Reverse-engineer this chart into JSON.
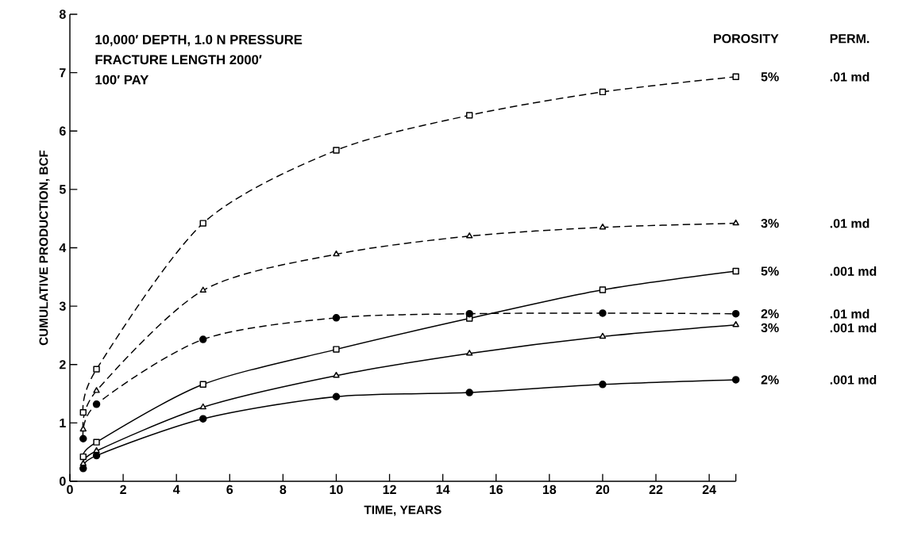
{
  "chart_data": {
    "type": "line",
    "xlabel": "TIME, YEARS",
    "ylabel": "CUMULATIVE PRODUCTION, BCF",
    "x": [
      0.5,
      1,
      5,
      10,
      15,
      20,
      25
    ],
    "series": [
      {
        "name": "5%",
        "color": "#000000",
        "marker": "square",
        "line_style": "dashed",
        "values": [
          1.18,
          1.92,
          4.42,
          5.67,
          6.27,
          6.67,
          6.93
        ]
      },
      {
        "name": "3%",
        "color": "#000000",
        "marker": "triangle",
        "line_style": "dashed",
        "values": [
          0.89,
          1.55,
          3.27,
          3.89,
          4.2,
          4.35,
          4.42
        ]
      },
      {
        "name": "5%",
        "color": "#000000",
        "marker": "square",
        "line_style": "solid",
        "values": [
          0.42,
          0.67,
          1.66,
          2.26,
          2.79,
          3.28,
          3.6
        ]
      },
      {
        "name": "2%",
        "color": "#000000",
        "marker": "circle",
        "line_style": "dashed",
        "values": [
          0.73,
          1.32,
          2.43,
          2.8,
          2.87,
          2.88,
          2.87
        ]
      },
      {
        "name": "3%",
        "color": "#000000",
        "marker": "triangle",
        "line_style": "solid",
        "values": [
          0.3,
          0.52,
          1.27,
          1.81,
          2.19,
          2.48,
          2.68
        ]
      },
      {
        "name": "2%",
        "color": "#000000",
        "marker": "circle",
        "line_style": "solid",
        "values": [
          0.22,
          0.44,
          1.07,
          1.45,
          1.52,
          1.66,
          1.74
        ]
      }
    ],
    "xlim": [
      0,
      25
    ],
    "ylim": [
      0,
      8
    ],
    "xticks": [
      0,
      2,
      4,
      6,
      8,
      10,
      12,
      14,
      16,
      18,
      20,
      22,
      24,
      {
        "value": 25,
        "label": null
      }
    ],
    "yticks": [
      0,
      1,
      2,
      3,
      4,
      5,
      6,
      7,
      8
    ],
    "grid": false,
    "annotations": [
      "10,000′ DEPTH, 1.0 N PRESSURE",
      "FRACTURE LENGTH 2000′",
      "100′ PAY",
      "POROSITY",
      "PERM.",
      ".01 md",
      ".01 md",
      ".001 md",
      ".01 md",
      ".001 md",
      ".001 md"
    ]
  }
}
